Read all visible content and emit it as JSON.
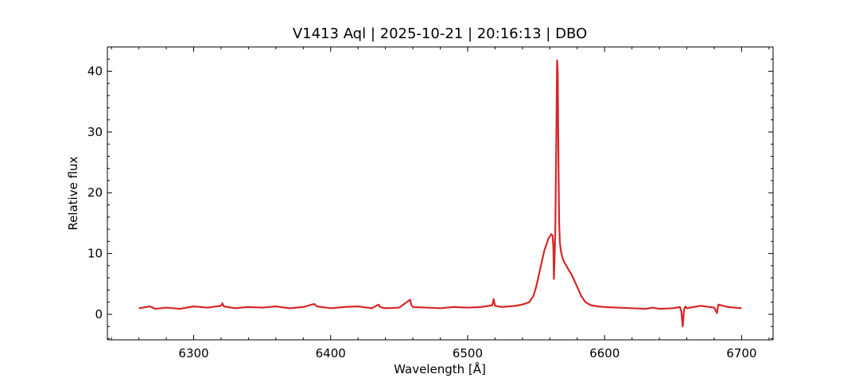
{
  "chart_data": {
    "type": "line",
    "title": "V1413 Aql | 2025-10-21 | 20:16:13 | DBO",
    "xlabel": "Wavelength [Å]",
    "ylabel": "Relative flux",
    "xlim": [
      6237,
      6723
    ],
    "ylim": [
      -4.2,
      44
    ],
    "xticks": [
      6300,
      6400,
      6500,
      6600,
      6700
    ],
    "yticks": [
      0,
      10,
      20,
      30,
      40
    ],
    "grid": false,
    "legend": "none",
    "series": [
      {
        "color": "#d62728",
        "x": [
          6260,
          6268,
          6272,
          6280,
          6290,
          6300,
          6305,
          6310,
          6320,
          6321,
          6322,
          6330,
          6340,
          6350,
          6360,
          6370,
          6380,
          6388,
          6390,
          6400,
          6410,
          6420,
          6430,
          6435,
          6436,
          6440,
          6450,
          6458,
          6459,
          6460,
          6470,
          6480,
          6490,
          6500,
          6510,
          6518,
          6519,
          6520,
          6525,
          6530,
          6535,
          6540,
          6545,
          6548,
          6550,
          6552,
          6554,
          6556,
          6558,
          6559,
          6560,
          6561,
          6562,
          6562.6,
          6563,
          6563.5,
          6564,
          6564.8,
          6565.3,
          6565.8,
          6566.3,
          6566.8,
          6567.3,
          6568,
          6569,
          6570,
          6572,
          6574,
          6576,
          6578,
          6580,
          6583,
          6586,
          6590,
          6595,
          6600,
          6610,
          6620,
          6630,
          6635,
          6640,
          6650,
          6655,
          6656,
          6657,
          6658,
          6659,
          6660,
          6670,
          6680,
          6682,
          6683,
          6690,
          6700
        ],
        "y": [
          1.0,
          1.3,
          0.9,
          1.1,
          0.9,
          1.3,
          1.2,
          1.1,
          1.4,
          1.8,
          1.3,
          1.0,
          1.2,
          1.1,
          1.3,
          1.0,
          1.2,
          1.7,
          1.3,
          1.0,
          1.2,
          1.3,
          1.0,
          1.6,
          1.2,
          1.0,
          1.1,
          2.4,
          1.5,
          1.2,
          1.1,
          1.0,
          1.2,
          1.1,
          1.2,
          1.5,
          2.5,
          1.4,
          1.2,
          1.3,
          1.4,
          1.6,
          2.0,
          3.0,
          4.5,
          6.5,
          8.5,
          10.5,
          11.8,
          12.5,
          12.8,
          13.2,
          13.0,
          11.0,
          5.8,
          9.5,
          14.0,
          30.0,
          41.8,
          40.0,
          25.0,
          15.0,
          12.0,
          10.5,
          9.5,
          8.8,
          8.0,
          7.2,
          6.5,
          5.5,
          4.5,
          3.0,
          2.0,
          1.5,
          1.3,
          1.2,
          1.1,
          1.0,
          0.9,
          1.1,
          0.9,
          1.0,
          1.2,
          0.5,
          -2.0,
          0.8,
          1.3,
          1.0,
          1.4,
          1.1,
          0.2,
          1.6,
          1.2,
          1.0
        ]
      }
    ]
  }
}
